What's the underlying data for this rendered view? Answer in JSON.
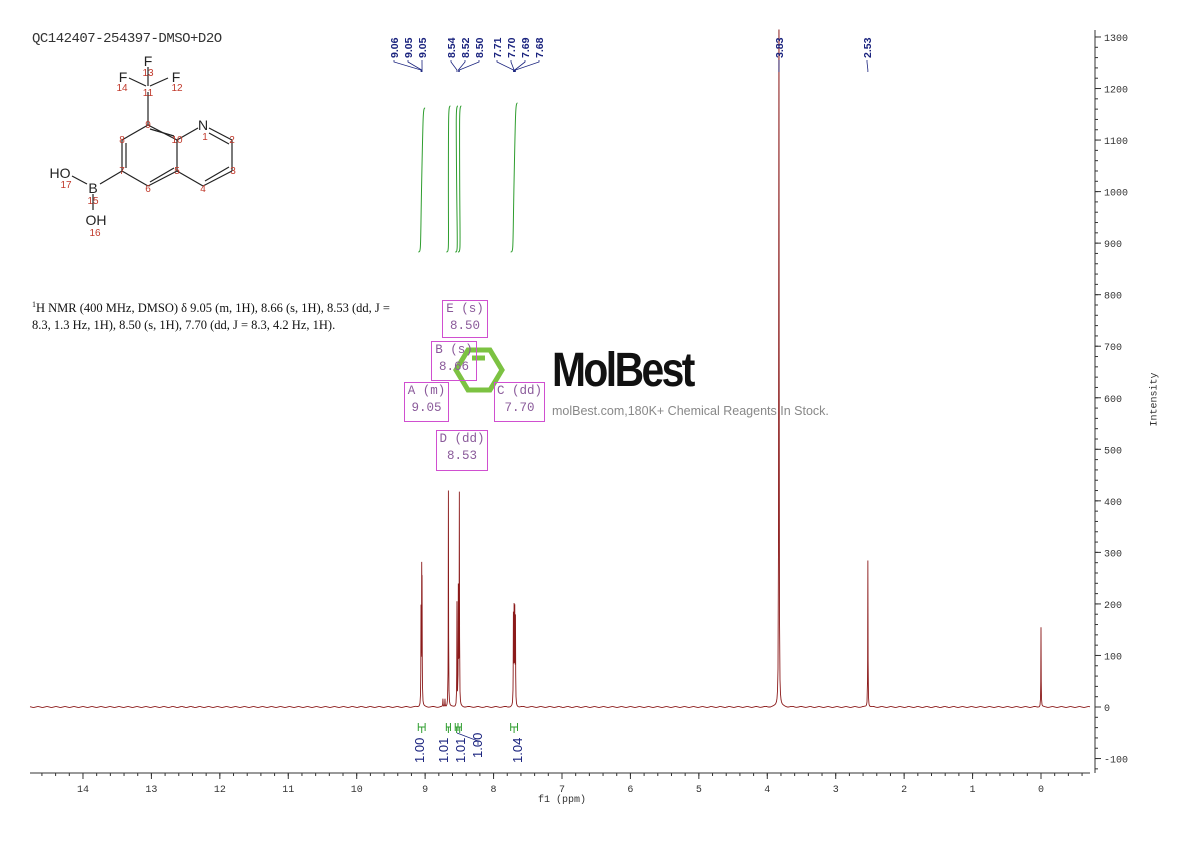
{
  "title": "QC142407-254397-DMSO+D2O",
  "molecule": {
    "atoms": {
      "F13": "F",
      "F14": "F",
      "F12": "F",
      "N": "N",
      "B": "B",
      "HO": "HO",
      "OH": "OH"
    },
    "numbers": [
      "1",
      "2",
      "3",
      "4",
      "5",
      "6",
      "7",
      "8",
      "9",
      "10",
      "11",
      "12",
      "13",
      "14",
      "15",
      "16",
      "17"
    ]
  },
  "nmr_description": {
    "sup": "1",
    "text": "H NMR (400 MHz, DMSO) δ 9.05 (m, 1H), 8.66 (s, 1H), 8.53 (dd, J = 8.3, 1.3 Hz, 1H), 8.50 (s, 1H), 7.70 (dd, J = 8.3, 4.2 Hz, 1H)."
  },
  "multiplet_boxes": [
    {
      "label": "E (s)",
      "value": "8.50"
    },
    {
      "label": "B (s)",
      "value": "8.66"
    },
    {
      "label": "A (m)",
      "value": "9.05"
    },
    {
      "label": "C (dd)",
      "value": "7.70"
    },
    {
      "label": "D (dd)",
      "value": "8.53"
    }
  ],
  "watermark": {
    "logo": "MolBest",
    "text": "molBest.com,180K+ Chemical Reagents In Stock."
  },
  "colors": {
    "spectrum": "#8b1a1a",
    "labels": "#1a237e",
    "integral": "#2e9d2e",
    "box": "#d04fd0"
  },
  "chart_data": {
    "type": "line",
    "xlabel": "f1 (ppm)",
    "ylabel": "Intensity",
    "xlim": [
      14.77,
      -0.72
    ],
    "ylim": [
      -130,
      1310
    ],
    "x_ticks": [
      "14",
      "13",
      "12",
      "11",
      "10",
      "9",
      "8",
      "7",
      "6",
      "5",
      "4",
      "3",
      "2",
      "1",
      "0"
    ],
    "y_ticks": [
      "1300",
      "1200",
      "1100",
      "1000",
      "900",
      "800",
      "700",
      "600",
      "500",
      "400",
      "300",
      "200",
      "100",
      "0",
      "-100"
    ],
    "peaks": [
      {
        "ppm": 9.06,
        "intensity": 180
      },
      {
        "ppm": 9.05,
        "intensity": 230
      },
      {
        "ppm": 9.045,
        "intensity": 205
      },
      {
        "ppm": 8.74,
        "intensity": 15
      },
      {
        "ppm": 8.71,
        "intensity": 15
      },
      {
        "ppm": 8.66,
        "intensity": 420
      },
      {
        "ppm": 8.535,
        "intensity": 200
      },
      {
        "ppm": 8.515,
        "intensity": 225
      },
      {
        "ppm": 8.5,
        "intensity": 410
      },
      {
        "ppm": 7.71,
        "intensity": 170
      },
      {
        "ppm": 7.7,
        "intensity": 178
      },
      {
        "ppm": 7.69,
        "intensity": 176
      },
      {
        "ppm": 7.68,
        "intensity": 165
      },
      {
        "ppm": 3.83,
        "intensity": 2200
      },
      {
        "ppm": 2.53,
        "intensity": 285
      },
      {
        "ppm": 0.0,
        "intensity": 155
      }
    ],
    "peak_labels": [
      {
        "text": "9.06",
        "ppm": 9.06
      },
      {
        "text": "9.05",
        "ppm": 9.05
      },
      {
        "text": "9.05",
        "ppm": 9.045
      },
      {
        "text": "8.54",
        "ppm": 8.535
      },
      {
        "text": "8.52",
        "ppm": 8.515
      },
      {
        "text": "8.50",
        "ppm": 8.5
      },
      {
        "text": "7.71",
        "ppm": 7.71
      },
      {
        "text": "7.70",
        "ppm": 7.7
      },
      {
        "text": "7.69",
        "ppm": 7.69
      },
      {
        "text": "7.68",
        "ppm": 7.68
      },
      {
        "text": "3.83",
        "ppm": 3.83
      },
      {
        "text": "2.53",
        "ppm": 2.53
      }
    ],
    "integrals": [
      {
        "value": "1.00",
        "from": 9.1,
        "to": 9.0
      },
      {
        "value": "1.01",
        "from": 8.69,
        "to": 8.63
      },
      {
        "value": "1.01",
        "from": 8.56,
        "to": 8.52
      },
      {
        "value": "1.00",
        "from": 8.52,
        "to": 8.47
      },
      {
        "value": "1.04",
        "from": 7.75,
        "to": 7.65
      }
    ],
    "grid": false
  }
}
